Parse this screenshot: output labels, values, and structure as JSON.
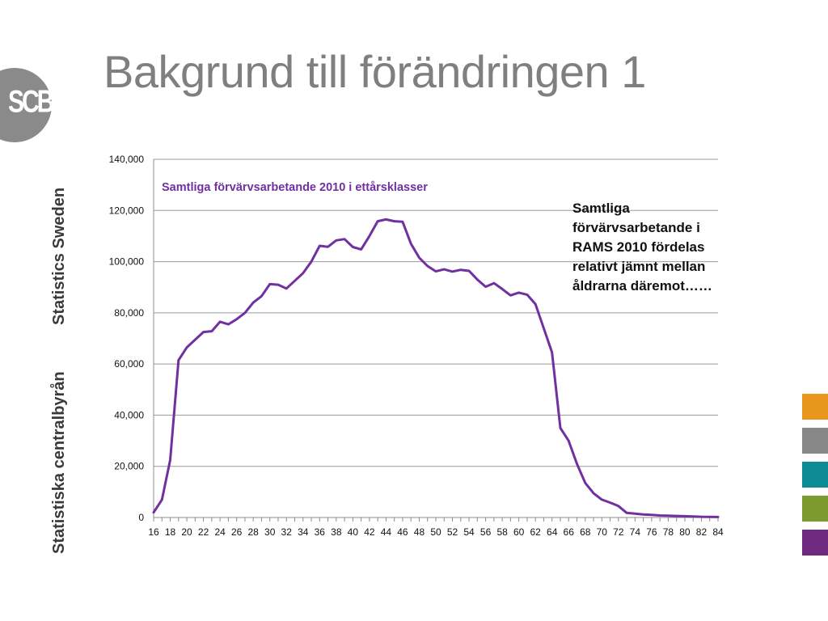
{
  "slide": {
    "title": "Bakgrund till förändringen 1",
    "annotation": "Samtliga förvärvsarbetande i RAMS 2010 fördelas relativt jämnt mellan åldrarna däremot……"
  },
  "branding": {
    "logo_text": "SCB",
    "vertical_text_en": "Statistics Sweden",
    "vertical_text_sv": "Statistiska centralbyrån",
    "swatches": [
      "#E8961E",
      "#878787",
      "#0E8C96",
      "#7D9A2E",
      "#6E2A7E"
    ]
  },
  "chart_data": {
    "type": "line",
    "title": "Samtliga förvärvsarbetande 2010 i ettårsklasser",
    "xlabel": "",
    "ylabel": "",
    "ylim": [
      0,
      140000
    ],
    "yticks": [
      "0",
      "20,000",
      "40,000",
      "60,000",
      "80,000",
      "100,000",
      "120,000",
      "140,000"
    ],
    "xticks": [
      "16",
      "18",
      "20",
      "22",
      "24",
      "26",
      "28",
      "30",
      "32",
      "34",
      "36",
      "38",
      "40",
      "42",
      "44",
      "46",
      "48",
      "50",
      "52",
      "54",
      "56",
      "58",
      "60",
      "62",
      "64",
      "66",
      "68",
      "70",
      "72",
      "74",
      "76",
      "78",
      "80",
      "82",
      "84"
    ],
    "grid": true,
    "legend": "none",
    "line_color": "#7030A0",
    "x": [
      16,
      17,
      18,
      19,
      20,
      21,
      22,
      23,
      24,
      25,
      26,
      27,
      28,
      29,
      30,
      31,
      32,
      33,
      34,
      35,
      36,
      37,
      38,
      39,
      40,
      41,
      42,
      43,
      44,
      45,
      46,
      47,
      48,
      49,
      50,
      51,
      52,
      53,
      54,
      55,
      56,
      57,
      58,
      59,
      60,
      61,
      62,
      63,
      64,
      65,
      66,
      67,
      68,
      69,
      70,
      71,
      72,
      73,
      74,
      75,
      76,
      77,
      78,
      79,
      80,
      81,
      82,
      83,
      84
    ],
    "values": [
      2000,
      7000,
      22500,
      61500,
      66500,
      69500,
      72500,
      72800,
      76500,
      75500,
      77500,
      80000,
      84000,
      86500,
      91200,
      91000,
      89500,
      92500,
      95500,
      100000,
      106200,
      105800,
      108300,
      108800,
      105700,
      104800,
      110000,
      115800,
      116500,
      115800,
      115600,
      107000,
      101500,
      98300,
      96200,
      97000,
      96100,
      96800,
      96400,
      93000,
      90200,
      91600,
      89300,
      86800,
      87900,
      87100,
      83400,
      74000,
      64500,
      35000,
      30000,
      21000,
      13500,
      9500,
      7000,
      5800,
      4500,
      1800,
      1500,
      1200,
      1000,
      800,
      700,
      600,
      500,
      400,
      300,
      250,
      200
    ]
  }
}
